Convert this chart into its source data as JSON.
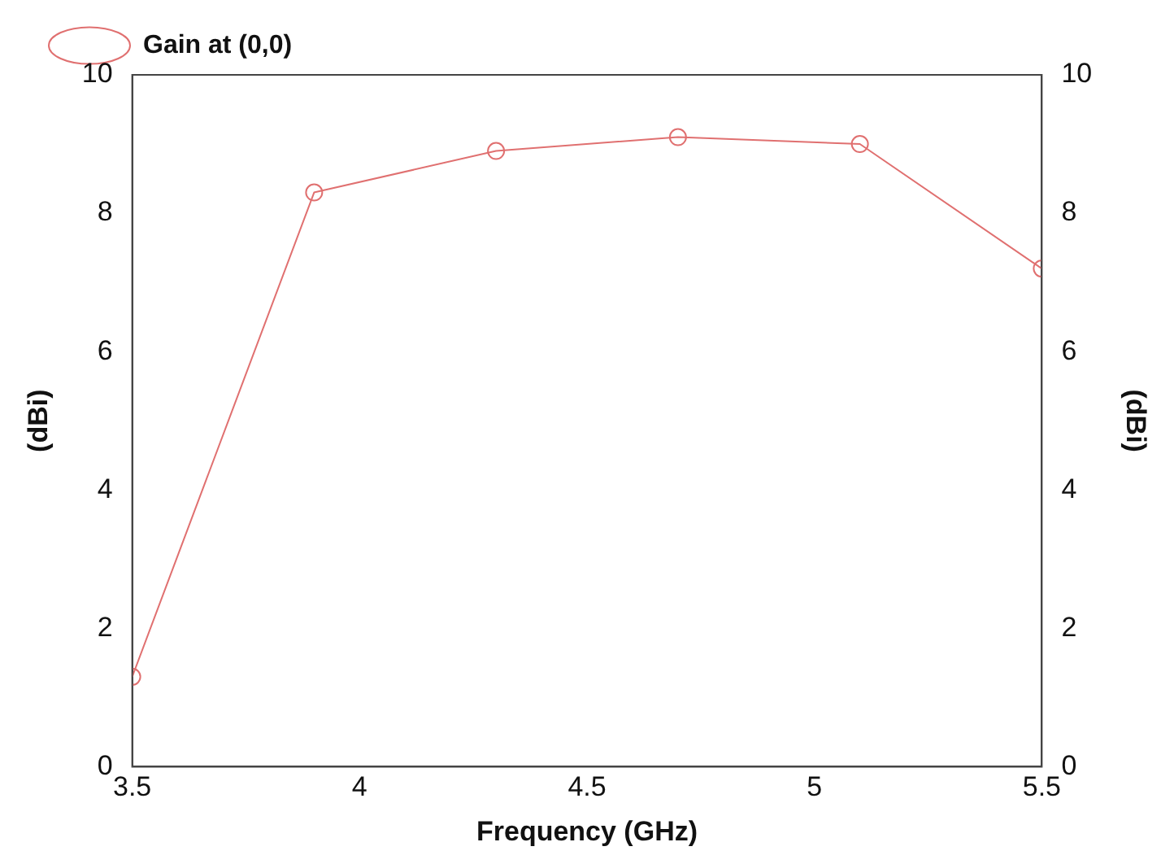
{
  "chart_data": {
    "type": "line",
    "xlabel": "Frequency (GHz)",
    "ylabel": "(dBi)",
    "y2label": "(dBi)",
    "x": [
      3.5,
      3.9,
      4.3,
      4.7,
      5.1,
      5.5
    ],
    "series": [
      {
        "name": "Gain at (0,0)",
        "color": "#e07070",
        "values": [
          1.3,
          8.3,
          8.9,
          9.1,
          9.0,
          7.2
        ]
      }
    ],
    "xlim": [
      3.5,
      5.5
    ],
    "xticks": [
      3.5,
      4,
      4.5,
      5,
      5.5
    ],
    "ylim": [
      0,
      10
    ],
    "yticks": [
      0,
      2,
      4,
      6,
      8,
      10
    ],
    "y2lim": [
      0,
      10
    ],
    "y2ticks": [
      0,
      2,
      4,
      6,
      8,
      10
    ],
    "grid": false,
    "legend": "top left",
    "marker": "circle",
    "line_style": "solid"
  }
}
